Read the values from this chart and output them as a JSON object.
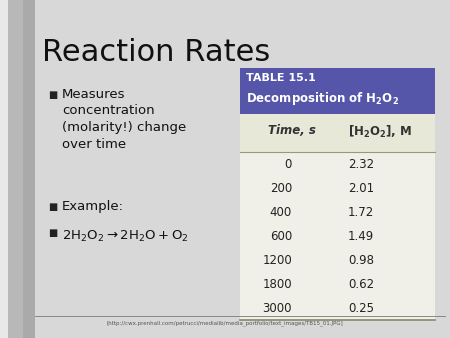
{
  "title": "Reaction Rates",
  "table_header_line1": "TABLE 15.1",
  "table_header_line2": "Decomposition of H$_2$O$_2$",
  "table_col1_header": "Time, s",
  "table_col2_header": "[H$_2$O$_2$], M",
  "table_data": [
    [
      0,
      "2.32"
    ],
    [
      200,
      "2.01"
    ],
    [
      400,
      "1.72"
    ],
    [
      600,
      "1.49"
    ],
    [
      1200,
      "0.98"
    ],
    [
      1800,
      "0.62"
    ],
    [
      3000,
      "0.25"
    ]
  ],
  "slide_bg": "#d0d0d0",
  "table_header_bg": "#5555aa",
  "table_header_fg": "#ffffff",
  "table_subheader_bg": "#e8e8d8",
  "table_body_bg": "#f0f0e8",
  "title_color": "#111111",
  "bullet_color": "#111111",
  "bullet_square": "■",
  "footnote": "[http://cwx.prenhall.com/petrucci/medialib/media_portfolio/text_images/TB15_01.JPG]"
}
